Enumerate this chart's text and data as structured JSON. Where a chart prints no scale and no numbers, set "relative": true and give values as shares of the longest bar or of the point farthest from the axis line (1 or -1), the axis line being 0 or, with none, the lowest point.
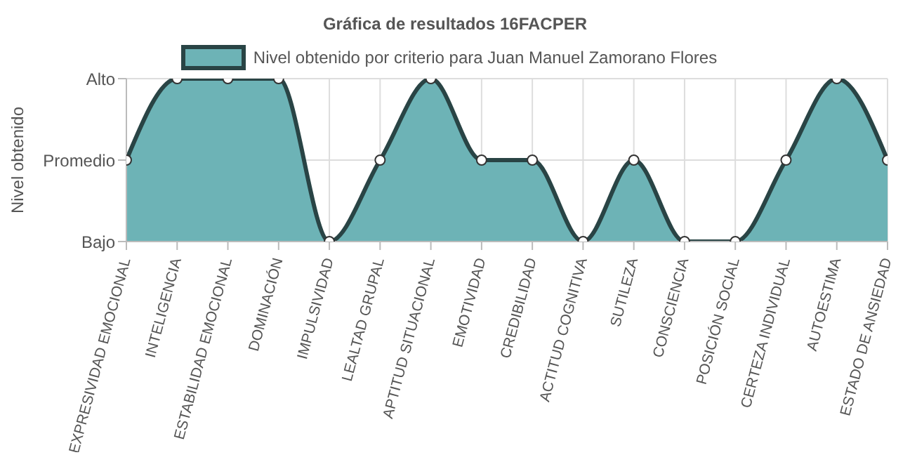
{
  "chart_data": {
    "type": "area",
    "title": "Gráfica de resultados 16FACPER",
    "ylabel": "Nivel obtenido",
    "categories": [
      "EXPRESIVIDAD EMOCIONAL",
      "INTELIGENCIA",
      "ESTABILIDAD EMOCIONAL",
      "DOMINACIÓN",
      "IMPULSIVIDAD",
      "LEALTAD GRUPAL",
      "APTITUD SITUACIONAL",
      "EMOTIVIDAD",
      "CREDIBILIDAD",
      "ACTITUD COGNITIVA",
      "SUTILEZA",
      "CONSCIENCIA",
      "POSICIÓN SOCIAL",
      "CERTEZA INDIVIDUAL",
      "AUTOESTIMA",
      "ESTADO DE ANSIEDAD"
    ],
    "series": [
      {
        "name": "Nivel obtenido por criterio para Juan Manuel Zamorano Flores",
        "color": "#6db3b6",
        "values": [
          0.5,
          1,
          1,
          1,
          0,
          0.5,
          1,
          0.5,
          0.5,
          0,
          0.5,
          0,
          0,
          0.5,
          1,
          0.5
        ]
      }
    ],
    "relative": true,
    "y_categories": [
      "Alto",
      "Promedio",
      "Bajo"
    ],
    "grid": true,
    "legend": "top",
    "marker": "circle",
    "line_style": "solid"
  }
}
